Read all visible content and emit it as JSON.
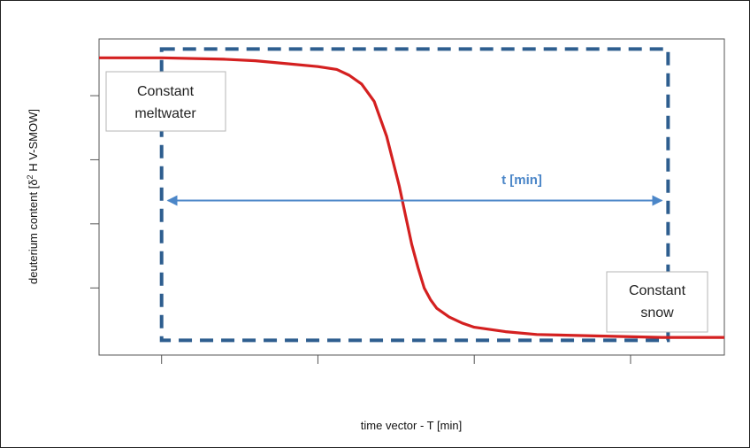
{
  "chart_data": {
    "type": "line",
    "title": "",
    "xlabel": "time vector - T [min]",
    "ylabel_main": "deuterium content [δ",
    "ylabel_sup": "2",
    "ylabel_rest": " H V-SMOW]",
    "xlim": [
      0,
      1
    ],
    "ylim": [
      0,
      1
    ],
    "x_ticks": [
      0.1,
      0.35,
      0.6,
      0.85
    ],
    "y_ticks": [
      0.2,
      0.42,
      0.64,
      0.86
    ],
    "tick_labels_shown": false,
    "grid": false,
    "series": [
      {
        "color": "#d42020",
        "x": [
          0,
          0.1,
          0.2,
          0.25,
          0.3,
          0.35,
          0.38,
          0.4,
          0.42,
          0.44,
          0.46,
          0.48,
          0.49,
          0.5,
          0.51,
          0.52,
          0.53,
          0.54,
          0.56,
          0.58,
          0.6,
          0.65,
          0.7,
          0.8,
          0.9,
          1.0
        ],
        "y": [
          0.99,
          0.99,
          0.985,
          0.98,
          0.97,
          0.96,
          0.95,
          0.93,
          0.9,
          0.84,
          0.72,
          0.55,
          0.45,
          0.35,
          0.27,
          0.2,
          0.16,
          0.13,
          0.1,
          0.08,
          0.065,
          0.05,
          0.04,
          0.035,
          0.03,
          0.03
        ]
      }
    ],
    "dashed_box": {
      "x": [
        0.1,
        0.91
      ],
      "y": [
        0.02,
        1.02
      ],
      "color": "#2e5e8f"
    },
    "double_arrow": {
      "x": [
        0.11,
        0.9
      ],
      "y": 0.5,
      "label": "t [min]",
      "color": "#4b86c8"
    },
    "annotations": [
      {
        "lines": [
          "Constant",
          "meltwater"
        ],
        "anchor": "top-left"
      },
      {
        "lines": [
          "Constant",
          "snow"
        ],
        "anchor": "bottom-right"
      }
    ]
  }
}
